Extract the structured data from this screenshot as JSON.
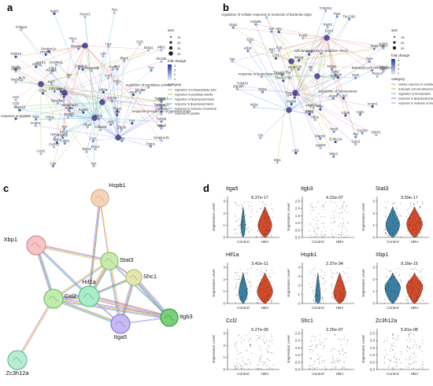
{
  "panel_labels": {
    "a": "a",
    "b": "b",
    "c": "c",
    "d": "d"
  },
  "panel_a": {
    "nodes": [
      "Apoc3",
      "Icam1",
      "Rps6",
      "Pck1",
      "Kank1",
      "Irs1",
      "Kat7",
      "Slc4a5",
      "Rbp4",
      "Cdc1",
      "Klf15",
      "Vcam1",
      "Fos",
      "Pfp",
      "Lpin1",
      "Socs3",
      "Cry1",
      "Nr1h4",
      "Akt1",
      "Nucb2",
      "response to peptide",
      "Cidea",
      "Kcnd2",
      "Serpine1c",
      "Serpine1b",
      "Serpina3n",
      "Cav1",
      "Serpina3k",
      "Serpina1a",
      "Nr4a1",
      "Edn1",
      "Tnfaip3",
      "Fst",
      "Ybx1",
      "Igt2",
      "Cebpa",
      "Ptgs2",
      "Rpl13",
      "Cxcl2",
      "Serpine1b",
      "Ccl2",
      "Psmb4",
      "Cxcl10",
      "Tlr2",
      "Zfp36",
      "Crp",
      "Irgm2",
      "Plin2",
      "Hadh",
      "response to molecule of bacterial origin",
      "regulation of peptidase activity",
      "Stat3",
      "Lgals3",
      "Cdkn1a",
      "Ifna",
      "Gbp2",
      "Cd36",
      "Fgl2",
      "Rps6ka3",
      "Mt2a",
      "Myd88",
      "Ccl3",
      "Ldlr",
      "Cxcl1",
      "Bcl3",
      "Jun",
      "Psmc3",
      "Cdkn2d",
      "Ecm1",
      "Agt",
      "Serpine1",
      "Apoh",
      "Timp1",
      "Sox7",
      "Hpx",
      "Tnfsf10",
      "Ier3",
      "Vegfa",
      "Bak1",
      "Hspa1b",
      "Hif1a",
      "Fxn",
      "Gadd45",
      "Mfn2",
      "Hmox1",
      "Cdv",
      "Ahsg",
      "Fcgr2b",
      "Ctsl",
      "Serping1",
      "Hnf1a"
    ],
    "legend_size_title": "size",
    "legend_sizes": [
      "10",
      "20",
      "30",
      "40"
    ],
    "legend_fc_title": "fold change",
    "legend_fc_ticks": [
      "4",
      "3",
      "2",
      "1"
    ],
    "legend_cat_title": "category",
    "categories": [
      "regulation of endopeptidase activity",
      "regulation of peptidase activity",
      "regulation of lipopolysaccharide",
      "response to lipopolysaccharide",
      "response to molecule of bacterial origin",
      "response to peptide"
    ],
    "category_colors": [
      "#f4a6a6",
      "#c8cc66",
      "#7fd0a0",
      "#66c8d8",
      "#a0a8f0",
      "#e0a0e0"
    ]
  },
  "panel_b": {
    "nodes": [
      "Tmem176b",
      "Tmem176a",
      "Nrp1",
      "Ing5",
      "Rtp4",
      "Ccl1",
      "Tnfsf10",
      "Klf2",
      "Tsc22d1",
      "Edn1",
      "Klf10",
      "Gat1",
      "Mt2a",
      "Fabp1",
      "regulation of hemopoiesis",
      "Vsir",
      "Fos",
      "Hsp90aa1",
      "Wnt5",
      "Hif1a",
      "Fxn",
      "Ptp",
      "Itga5",
      "Cd3",
      "Ppia",
      "Bmp4",
      "Egr1",
      "Hspb1",
      "Kdm6b",
      "cellular response to oxidative stress",
      "Pdcd1",
      "Alcam",
      "Il6",
      "Cd3",
      "Rhob",
      "Zfp36",
      "leukocyte cell-cell adhesion",
      "Icam1",
      "Jun",
      "Vcam1",
      "Zc3h12a",
      "Shc1",
      "Tnfrsf14",
      "Gstp2",
      "Cxcl10",
      "Lgals3",
      "Cd36",
      "Mapk3",
      "Stat3",
      "Il15",
      "Clu",
      "Lrg1",
      "Selp",
      "Cd47",
      "Fosl2",
      "Selp1",
      "regulation of cellular response to molecule of bacterial origin",
      "response to lipopolysaccharide",
      "Gbp2",
      "Ifi47",
      "Abcb1",
      "Pdcd4",
      "Cxcl1",
      "Irgm1",
      "Psmc3",
      "Smad6",
      "Cd1d",
      "Jam2",
      "Sele"
    ],
    "legend_size_title": "size",
    "legend_sizes": [
      "15",
      "20",
      "25"
    ],
    "legend_fc_title": "fold change",
    "legend_fc_ticks": [
      "4",
      "3",
      "2",
      "1"
    ],
    "legend_cat_title": "category",
    "categories": [
      "cellular response to oxidative stress",
      "leukocyte cell-cell adhesion",
      "regulation of hemopoiesis",
      "response to lipopolysaccharide",
      "response to molecule of bacterial origin"
    ],
    "category_colors": [
      "#e8a0a0",
      "#c8cc66",
      "#7fd0a0",
      "#70a8e8",
      "#d0a0e0"
    ]
  },
  "panel_c": {
    "nodes": [
      {
        "label": "Hspb1",
        "color": "#f4d4b8",
        "stroke": "#d8b090"
      },
      {
        "label": "Xbp1",
        "color": "#f6c4c4",
        "stroke": "#d89090"
      },
      {
        "label": "Stat3",
        "color": "#c8ecb0",
        "stroke": "#8cc070"
      },
      {
        "label": "Shc1",
        "color": "#e4e8b0",
        "stroke": "#b8bc70"
      },
      {
        "label": "Hif1a",
        "color": "#a8ecc8",
        "stroke": "#60c090"
      },
      {
        "label": "Ccl2",
        "color": "#c0ecb0",
        "stroke": "#80c070"
      },
      {
        "label": "Itga5",
        "color": "#c8b8f4",
        "stroke": "#9080d8"
      },
      {
        "label": "Itgb3",
        "color": "#78d078",
        "stroke": "#40a040"
      },
      {
        "label": "Zc3h12a",
        "color": "#b8ecd4",
        "stroke": "#70c0a0"
      }
    ]
  },
  "panel_d": {
    "ylabel": "Expression Level",
    "xcats": [
      "Control",
      "HBV"
    ],
    "colors": {
      "control": "#2f6f8f",
      "hbv": "#c8402a",
      "control_fill": "#3a7fa3",
      "hbv_fill": "#d04a2c"
    },
    "genes": [
      {
        "name": "Itga5",
        "pvalue": "8.37e-17",
        "yticks": [
          "0",
          "1",
          "2",
          "3"
        ],
        "ymax": 3,
        "control_median": 0.9,
        "hbv_median": 1.0,
        "control_width": 0.25,
        "hbv_width": 0.8
      },
      {
        "name": "Itgb3",
        "pvalue": "4.22e-07",
        "yticks": [
          "0.0",
          "0.5",
          "1.0",
          "1.5",
          "2.0",
          "2.5"
        ],
        "ymax": 2.5,
        "control_median": 0,
        "hbv_median": 0,
        "control_width": 0.1,
        "hbv_width": 0.1
      },
      {
        "name": "Stat3",
        "pvalue": "9.59e-17",
        "yticks": [
          "0",
          "1",
          "2",
          "3"
        ],
        "ymax": 3.5,
        "control_median": 1.2,
        "hbv_median": 1.3,
        "control_width": 0.8,
        "hbv_width": 0.9
      },
      {
        "name": "Hif1a",
        "pvalue": "3.42e-11",
        "yticks": [
          "0",
          "1",
          "2",
          "3"
        ],
        "ymax": 3,
        "control_median": 0.9,
        "hbv_median": 1.0,
        "control_width": 0.5,
        "hbv_width": 0.9
      },
      {
        "name": "Hspb1",
        "pvalue": "2.37e-34",
        "yticks": [
          "0",
          "1",
          "2",
          "3",
          "4"
        ],
        "ymax": 4,
        "control_median": 0.7,
        "hbv_median": 1.1,
        "control_width": 0.3,
        "hbv_width": 0.7
      },
      {
        "name": "Xbp1",
        "pvalue": "9.29e-15",
        "yticks": [
          "0",
          "1",
          "2",
          "3"
        ],
        "ymax": 3,
        "control_median": 1.3,
        "hbv_median": 1.4,
        "control_width": 0.9,
        "hbv_width": 0.95
      },
      {
        "name": "Ccl2",
        "pvalue": "5.27e-09",
        "yticks": [
          "0",
          "1",
          "2",
          "3"
        ],
        "ymax": 3.5,
        "control_median": 0,
        "hbv_median": 0,
        "control_width": 0.08,
        "hbv_width": 0.1
      },
      {
        "name": "Shc1",
        "pvalue": "2.25e-07",
        "yticks": [
          "0.0",
          "0.5",
          "1.0",
          "1.5",
          "2.0",
          "2.5"
        ],
        "ymax": 2.5,
        "control_median": 0,
        "hbv_median": 0,
        "control_width": 0.08,
        "hbv_width": 0.1
      },
      {
        "name": "Zc3h12a",
        "pvalue": "5.81e-08",
        "yticks": [
          "0.0",
          "0.5",
          "1.0",
          "1.5",
          "2.0",
          "2.5"
        ],
        "ymax": 2.5,
        "control_median": 0,
        "hbv_median": 0,
        "control_width": 0.08,
        "hbv_width": 0.1
      }
    ]
  }
}
